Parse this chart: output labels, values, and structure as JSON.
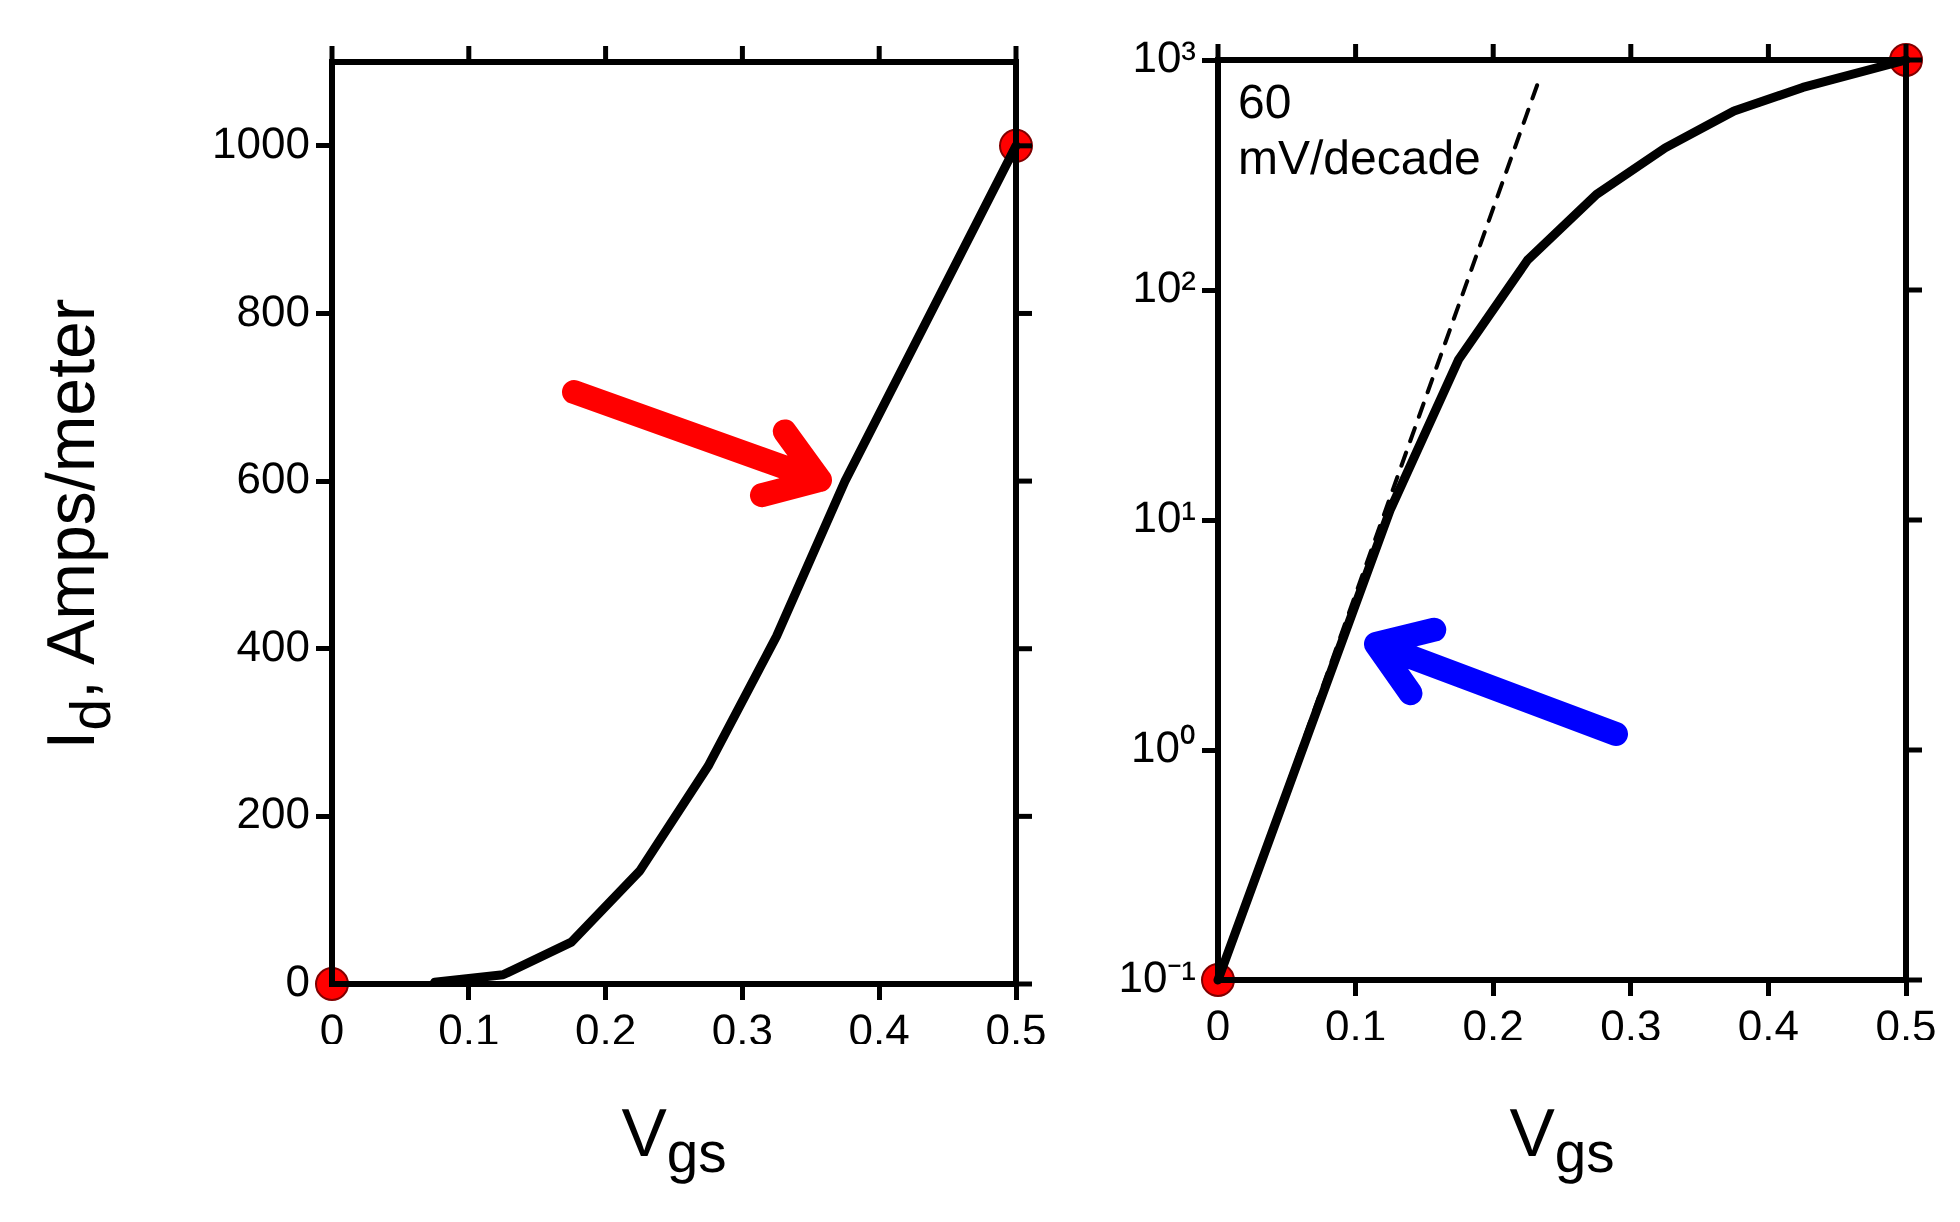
{
  "chart_data": [
    {
      "type": "line",
      "xlabel": "V$_{gs}$",
      "ylabel": "I$_{d}$, Amps/meter",
      "xlim": [
        0,
        0.5
      ],
      "xticks": [
        0,
        0.1,
        0.2,
        0.3,
        0.4,
        0.5
      ],
      "ylim": [
        0,
        1100
      ],
      "yticks": [
        0,
        200,
        400,
        600,
        800,
        1000
      ],
      "grid": false,
      "legend": false,
      "series": [
        {
          "type": "line",
          "color": "#000000",
          "line_style": "solid",
          "marker": "none",
          "x": [
            0.075,
            0.125,
            0.175,
            0.225,
            0.275,
            0.325,
            0.375,
            0.425,
            0.5
          ],
          "values": [
            2,
            11,
            50,
            135,
            260,
            415,
            600,
            760,
            1000
          ]
        },
        {
          "type": "scatter",
          "color": "#ff0000",
          "marker": "circle",
          "x": [
            0,
            0.5
          ],
          "values": [
            0,
            1000
          ]
        }
      ]
    },
    {
      "type": "line",
      "xlabel": "V$_{gs}$",
      "log": "y",
      "xlim": [
        0,
        0.5
      ],
      "xticks": [
        0,
        0.1,
        0.2,
        0.3,
        0.4,
        0.5
      ],
      "ylim": [
        0.1,
        1000
      ],
      "yticks": [
        {
          "value": 0.1,
          "label": "10⁻¹"
        },
        {
          "value": 1,
          "label": "10⁰"
        },
        {
          "value": 10,
          "label": "10¹"
        },
        {
          "value": 100,
          "label": "10²"
        },
        {
          "value": 1000,
          "label": "10³"
        }
      ],
      "grid": false,
      "legend": false,
      "annotations": [
        "60 mV/decade"
      ],
      "series": [
        {
          "type": "line",
          "color": "#000000",
          "line_style": "dashed",
          "marker": "none",
          "x": [
            0,
            0.233
          ],
          "values": [
            0.1,
            810
          ]
        },
        {
          "type": "line",
          "color": "#000000",
          "line_style": "solid",
          "marker": "none",
          "x": [
            0,
            0.125,
            0.175,
            0.225,
            0.275,
            0.325,
            0.375,
            0.425,
            0.5
          ],
          "values": [
            0.1,
            11,
            50,
            135,
            260,
            415,
            600,
            760,
            1000
          ]
        },
        {
          "type": "scatter",
          "color": "#ff0000",
          "marker": "circle",
          "x": [
            0,
            0.5
          ],
          "values": [
            0.1,
            1000
          ]
        }
      ]
    }
  ]
}
